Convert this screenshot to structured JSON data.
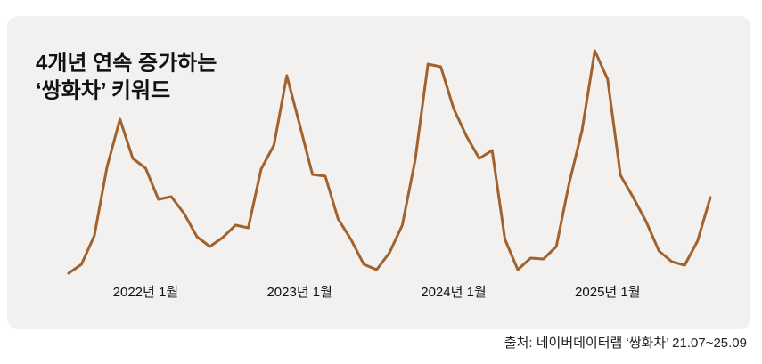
{
  "chart_data": {
    "type": "line",
    "title": [
      "4개년 연속 증가하는",
      "‘쌍화차’ 키워드"
    ],
    "source": "출처: 네이버데이터랩 ‘쌍화차’ 21.07~25.09",
    "categories": [
      null,
      null,
      null,
      null,
      null,
      null,
      "2022년 1월",
      null,
      null,
      null,
      null,
      null,
      null,
      null,
      null,
      null,
      null,
      null,
      "2023년 1월",
      null,
      null,
      null,
      null,
      null,
      null,
      null,
      null,
      null,
      null,
      null,
      "2024년 1월",
      null,
      null,
      null,
      null,
      null,
      null,
      null,
      null,
      null,
      null,
      null,
      "2025년 1월",
      null,
      null,
      null,
      null,
      null,
      null,
      null,
      null
    ],
    "series": [
      {
        "name": "쌍화차",
        "color": "#a1622e",
        "values": [
          3,
          13,
          45,
          123,
          176,
          132,
          121,
          86,
          89,
          70,
          44,
          33,
          43,
          57,
          54,
          120,
          147,
          225,
          170,
          114,
          112,
          64,
          41,
          13,
          7,
          26,
          57,
          130,
          238,
          235,
          188,
          157,
          132,
          141,
          41,
          7,
          20,
          19,
          33,
          104,
          163,
          253,
          221,
          113,
          88,
          61,
          28,
          16,
          12,
          39,
          88
        ]
      }
    ],
    "ylim": [
      0,
      260
    ]
  }
}
